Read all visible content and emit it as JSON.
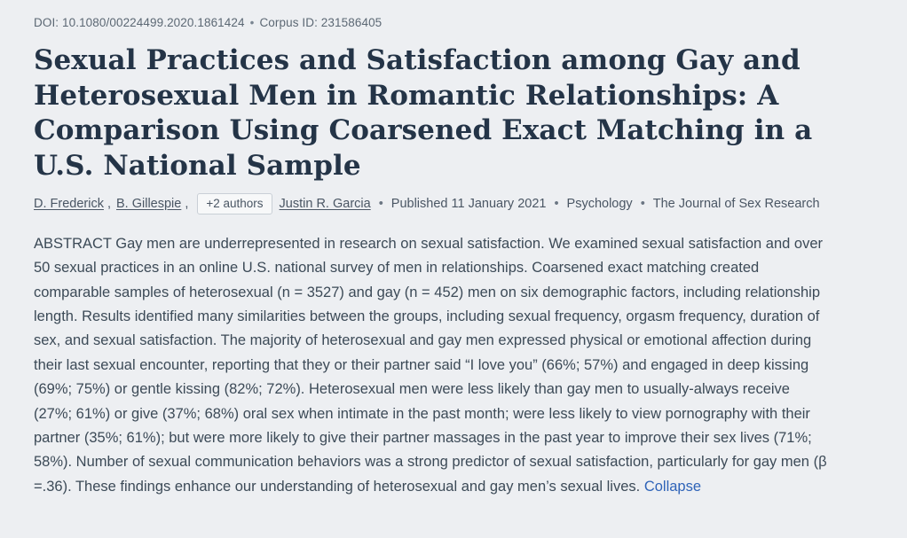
{
  "header": {
    "doi_label": "DOI: 10.1080/00224499.2020.1861424",
    "separator": "•",
    "corpus_label": "Corpus ID: 231586405"
  },
  "title": "Sexual Practices and Satisfaction among Gay and Heterosexual Men in Romantic Relationships: A Comparison Using Coarsened Exact Matching in a U.S. National Sample",
  "authors": {
    "author1": "D. Frederick",
    "author2": "B. Gillespie",
    "comma": ",",
    "expand_button_label": "+2 authors",
    "author3": "Justin R. Garcia",
    "separator": "•",
    "published": "Published 11 January 2021",
    "field": "Psychology",
    "journal": "The Journal of Sex Research"
  },
  "abstract": {
    "text": "ABSTRACT Gay men are underrepresented in research on sexual satisfaction. We examined sexual satisfaction and over 50 sexual practices in an online U.S. national survey of men in relationships. Coarsened exact matching created comparable samples of heterosexual (n = 3527) and gay (n = 452) men on six demographic factors, including relationship length. Results identified many similarities between the groups, including sexual frequency, orgasm frequency, duration of sex, and sexual satisfaction. The majority of heterosexual and gay men expressed physical or emotional affection during their last sexual encounter, reporting that they or their partner said “I love you” (66%; 57%) and engaged in deep kissing (69%; 75%) or gentle kissing (82%; 72%). Heterosexual men were less likely than gay men to usually-always receive (27%; 61%) or give (37%; 68%) oral sex when intimate in the past month; were less likely to view pornography with their partner (35%; 61%); but were more likely to give their partner massages in the past year to improve their sex lives (71%; 58%). Number of sexual communication behaviors was a strong predictor of sexual satisfaction, particularly for gay men (β =.36). These findings enhance our understanding of heterosexual and gay men’s sexual lives.",
    "collapse_label": "Collapse"
  }
}
